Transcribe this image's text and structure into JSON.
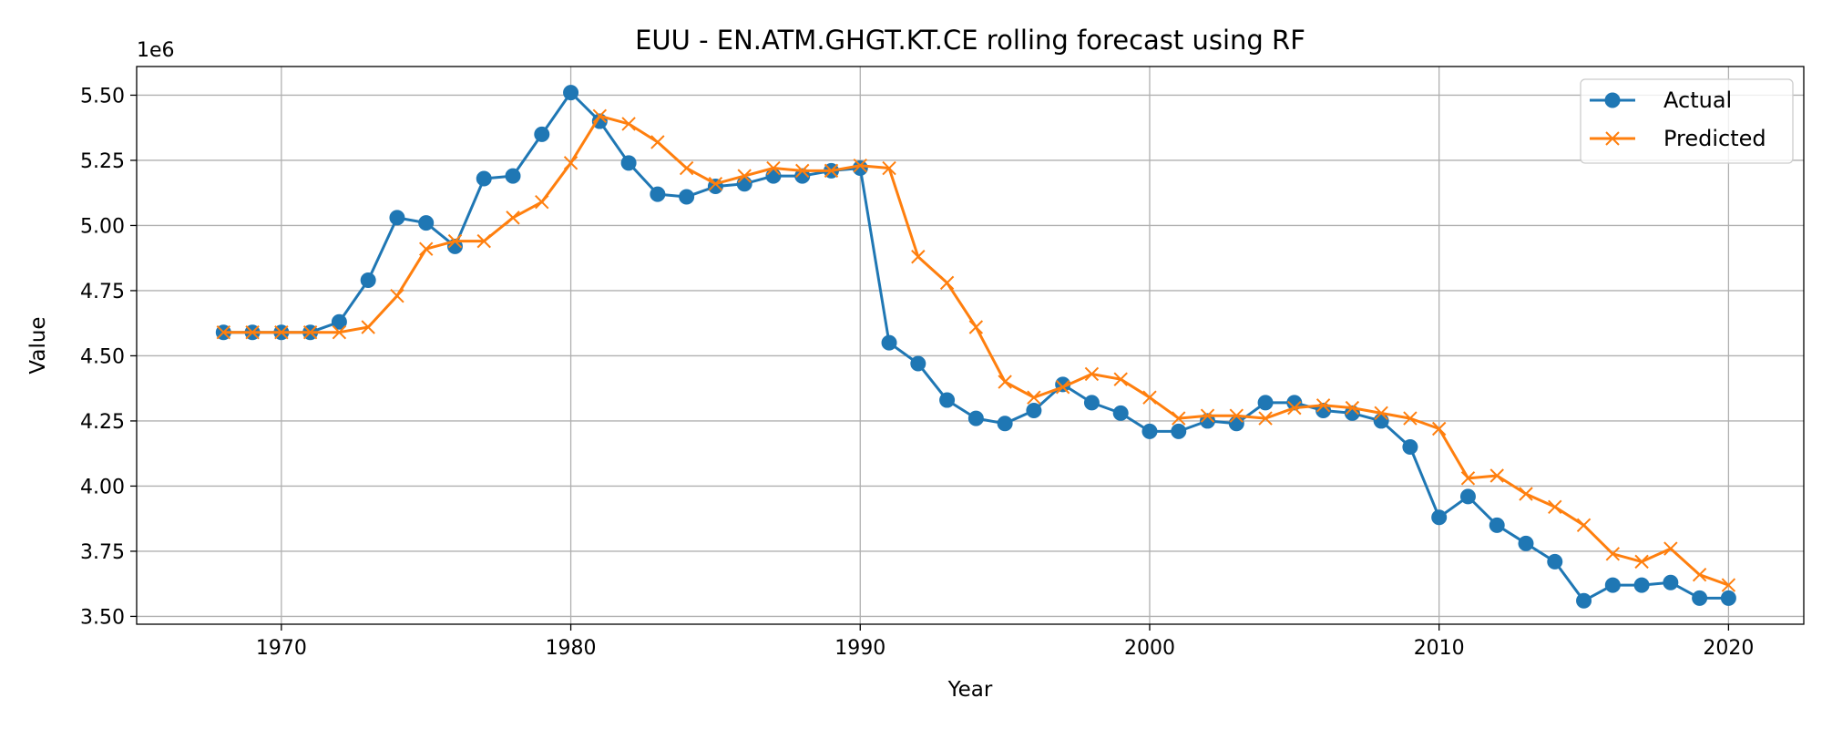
{
  "chart_data": {
    "type": "line",
    "title": "EUU - EN.ATM.GHGT.KT.CE rolling forecast using RF",
    "xlabel": "Year",
    "ylabel": "Value",
    "y_offset_label": "1e6",
    "xlim": [
      1965,
      2022.6
    ],
    "ylim": [
      3.47,
      5.61
    ],
    "x_ticks": [
      1970,
      1980,
      1990,
      2000,
      2010,
      2020
    ],
    "y_ticks": [
      3.5,
      3.75,
      4.0,
      4.25,
      4.5,
      4.75,
      5.0,
      5.25,
      5.5
    ],
    "y_tick_labels": [
      "3.50",
      "3.75",
      "4.00",
      "4.25",
      "4.50",
      "4.75",
      "5.00",
      "5.25",
      "5.50"
    ],
    "grid": true,
    "legend_position": "top-right",
    "x": [
      1968,
      1969,
      1970,
      1971,
      1972,
      1973,
      1974,
      1975,
      1976,
      1977,
      1978,
      1979,
      1980,
      1981,
      1982,
      1983,
      1984,
      1985,
      1986,
      1987,
      1988,
      1989,
      1990,
      1991,
      1992,
      1993,
      1994,
      1995,
      1996,
      1997,
      1998,
      1999,
      2000,
      2001,
      2002,
      2003,
      2004,
      2005,
      2006,
      2007,
      2008,
      2009,
      2010,
      2011,
      2012,
      2013,
      2014,
      2015,
      2016,
      2017,
      2018,
      2019,
      2020
    ],
    "series": [
      {
        "name": "Actual",
        "color": "#1f77b4",
        "marker": "circle",
        "values": [
          4.59,
          4.59,
          4.59,
          4.59,
          4.63,
          4.79,
          5.03,
          5.01,
          4.92,
          5.18,
          5.19,
          5.35,
          5.51,
          5.4,
          5.24,
          5.12,
          5.11,
          5.15,
          5.16,
          5.19,
          5.19,
          5.21,
          5.22,
          4.55,
          4.47,
          4.33,
          4.26,
          4.24,
          4.29,
          4.39,
          4.32,
          4.28,
          4.21,
          4.21,
          4.25,
          4.24,
          4.32,
          4.32,
          4.29,
          4.28,
          4.25,
          4.15,
          3.88,
          3.96,
          3.85,
          3.78,
          3.71,
          3.56,
          3.62,
          3.62,
          3.63,
          3.57,
          3.57
        ]
      },
      {
        "name": "Predicted",
        "color": "#ff7f0e",
        "marker": "x",
        "values": [
          4.59,
          4.59,
          4.59,
          4.59,
          4.59,
          4.61,
          4.73,
          4.91,
          4.94,
          4.94,
          5.03,
          5.09,
          5.24,
          5.42,
          5.39,
          5.32,
          5.22,
          5.16,
          5.19,
          5.22,
          5.21,
          5.21,
          5.23,
          5.22,
          4.88,
          4.78,
          4.61,
          4.4,
          4.34,
          4.38,
          4.43,
          4.41,
          4.34,
          4.26,
          4.27,
          4.27,
          4.26,
          4.3,
          4.31,
          4.3,
          4.28,
          4.26,
          4.22,
          4.03,
          4.04,
          3.97,
          3.92,
          3.85,
          3.74,
          3.71,
          3.76,
          3.66,
          3.62
        ]
      }
    ]
  }
}
